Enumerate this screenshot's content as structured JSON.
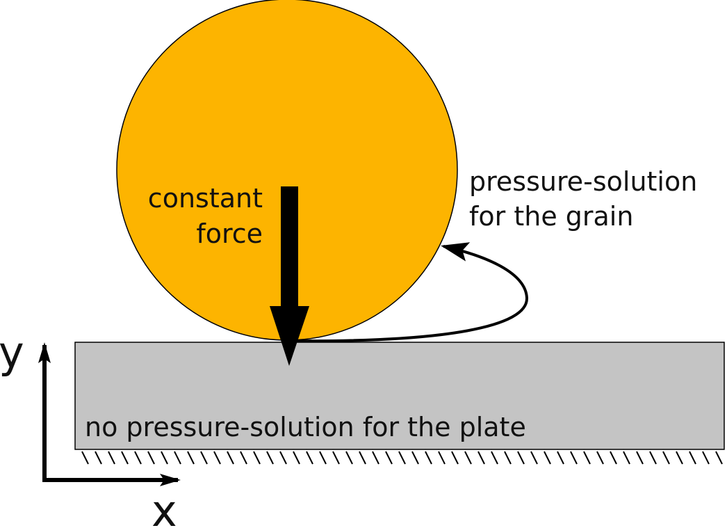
{
  "labels": {
    "force_line1": "constant",
    "force_line2": "force",
    "grain_line1": "pressure-solution",
    "grain_line2": "for the grain",
    "plate": "no pressure-solution for the plate",
    "axis_x": "x",
    "axis_y": "y"
  },
  "colors": {
    "grain": "#FDB400",
    "plate": "#C4C4C4",
    "outline": "#000000",
    "text": "#111111"
  }
}
